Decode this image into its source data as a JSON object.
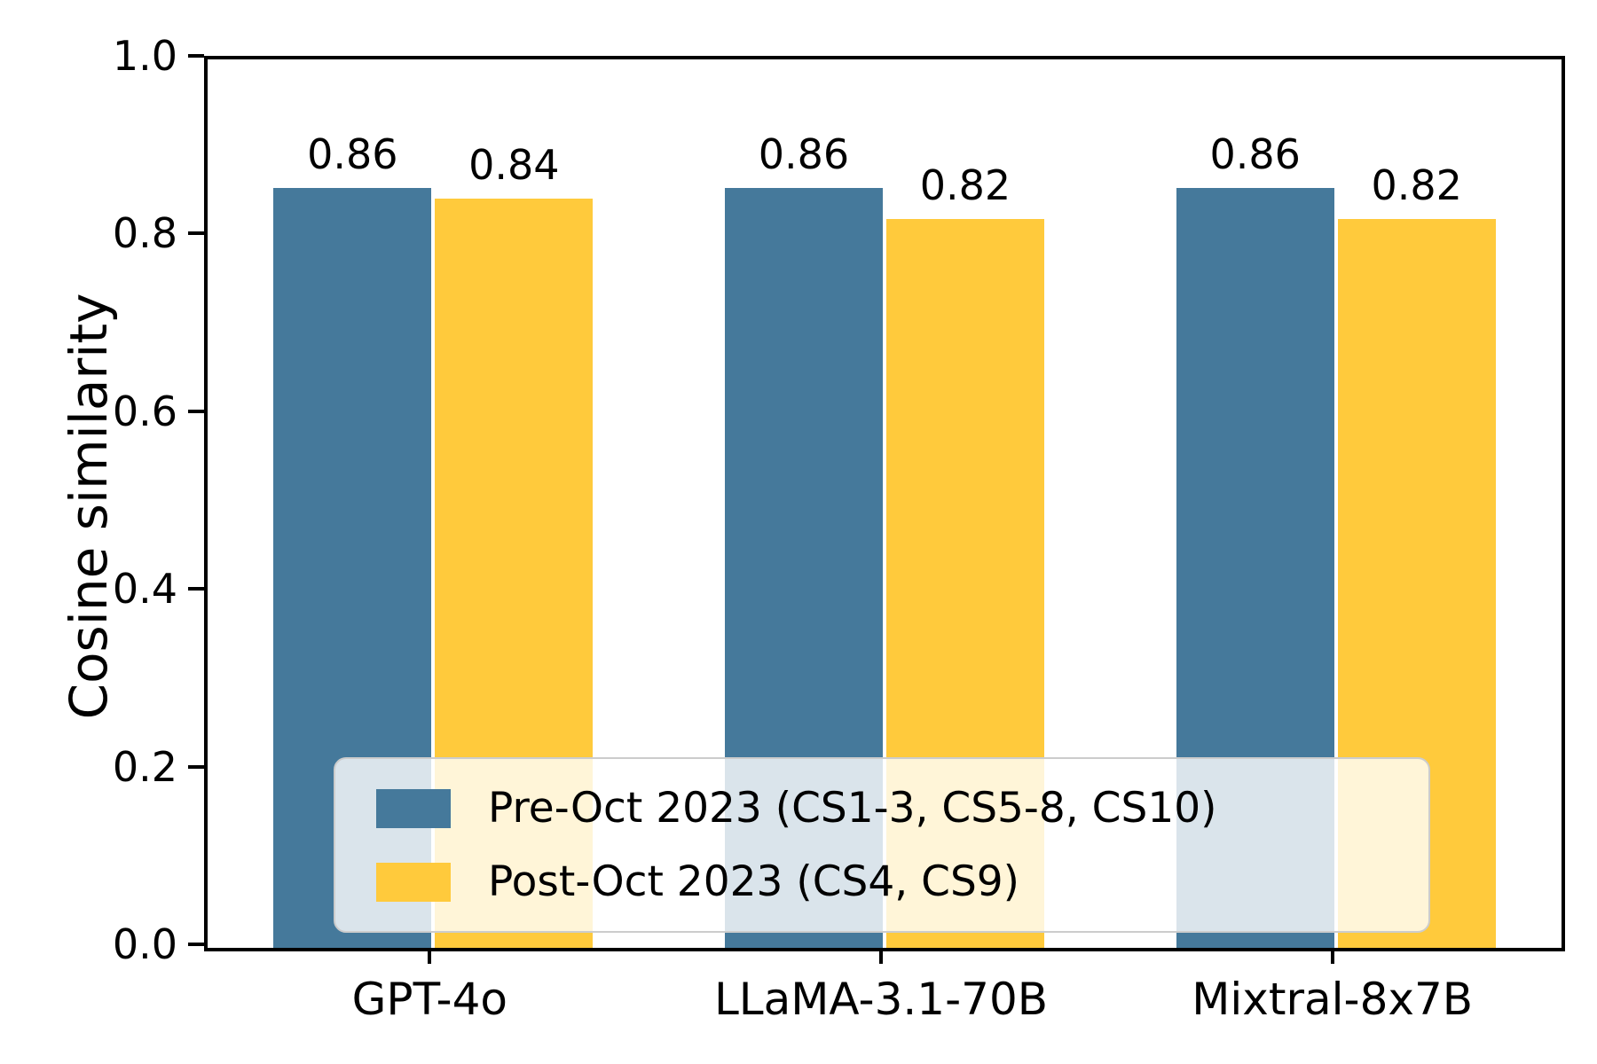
{
  "chart_data": {
    "type": "bar",
    "title": "",
    "xlabel": "",
    "ylabel": "Cosine similarity",
    "ylim": [
      0.0,
      1.0
    ],
    "ytick_labels": [
      "0.0",
      "0.2",
      "0.4",
      "0.6",
      "0.8",
      "1.0"
    ],
    "ytick_values": [
      0.0,
      0.2,
      0.4,
      0.6,
      0.8,
      1.0
    ],
    "grid": false,
    "legend_position": "lower center inside axes",
    "categories": [
      "GPT-4o",
      "LLaMA-3.1-70B",
      "Mixtral-8x7B"
    ],
    "series": [
      {
        "name": "Pre-Oct 2023 (CS1-3, CS5-8, CS10)",
        "color": "#45799B",
        "values": [
          0.86,
          0.86,
          0.86
        ],
        "plot_heights": [
          0.855,
          0.855,
          0.855
        ]
      },
      {
        "name": "Post-Oct 2023 (CS4, CS9)",
        "color": "#FFCA3C",
        "values": [
          0.84,
          0.82,
          0.82
        ],
        "plot_heights": [
          0.843,
          0.82,
          0.82
        ]
      }
    ],
    "bar_value_labels": [
      [
        "0.86",
        "0.84"
      ],
      [
        "0.86",
        "0.82"
      ],
      [
        "0.86",
        "0.82"
      ]
    ],
    "colors": {
      "spine": "#000000",
      "text": "#000000",
      "legend_border": "#cccccc",
      "legend_bg": "rgba(255,255,255,0.8)"
    }
  }
}
